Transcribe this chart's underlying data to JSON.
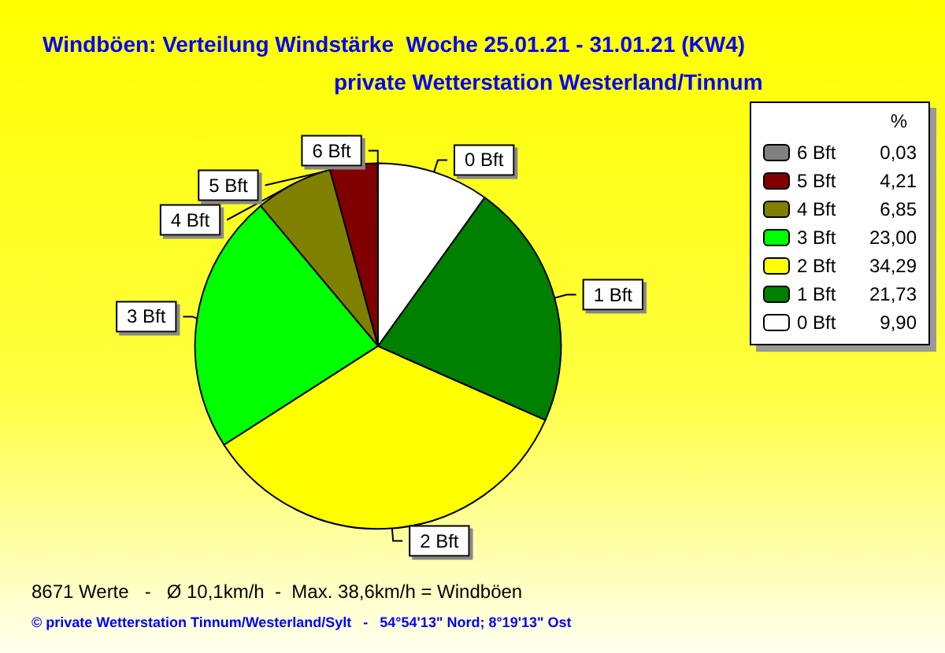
{
  "chart_data": {
    "type": "pie",
    "title": "Windböen: Verteilung Windstärke  Woche 25.01.21 - 31.01.21 (KW4)",
    "subtitle": "private Wetterstation Westerland/Tinnum",
    "categories": [
      "6 Bft",
      "5 Bft",
      "4 Bft",
      "3 Bft",
      "2 Bft",
      "1 Bft",
      "0 Bft"
    ],
    "values": [
      0.03,
      4.21,
      6.85,
      23.0,
      34.29,
      21.73,
      9.9
    ],
    "value_labels": [
      "0,03",
      "4,21",
      "6,85",
      "23,00",
      "34,29",
      "21,73",
      "9,90"
    ],
    "colors": [
      "#808080",
      "#800000",
      "#808000",
      "#00ff00",
      "#ffff00",
      "#008000",
      "#ffffff"
    ],
    "legend": "top right",
    "legend_title": "%",
    "annotations": [
      "8671 Werte   -   Ø 10,1km/h  -  Max. 38,6km/h = Windböen",
      "© private Wetterstation Tinnum/Westerland/Sylt   -   54°54'13\" Nord; 8°19'13\" Ost"
    ]
  }
}
